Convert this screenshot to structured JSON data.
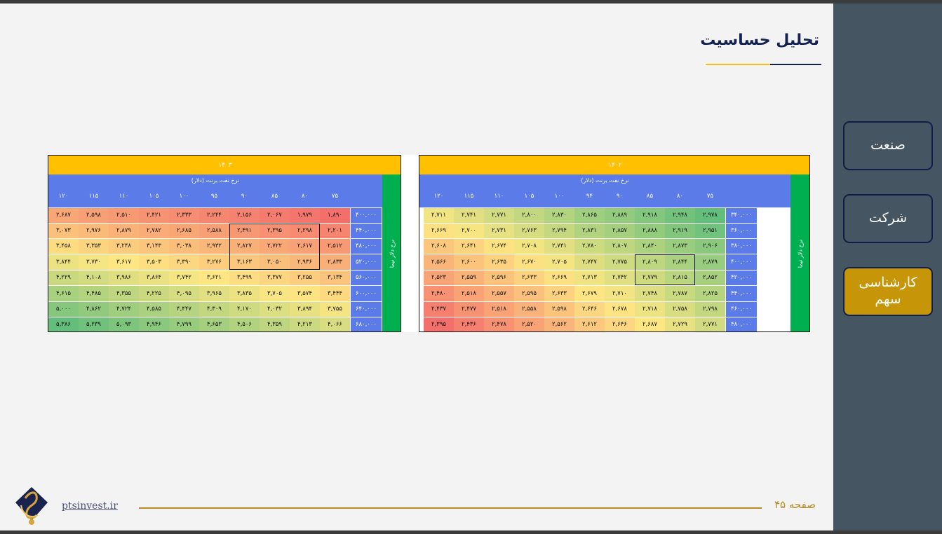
{
  "title": "تحلیل حساسیت",
  "nav": [
    "صنعت",
    "شرکت",
    "کارشناسی سهم"
  ],
  "footer": {
    "page": "صفحه ۴۵",
    "site": "ptsinvest.ir"
  },
  "colors": {
    "accent": "#ffc000",
    "header": "#5b7be8",
    "band": "#00b050",
    "active_nav": "#c79508"
  },
  "left_table": {
    "year": "۱۴۰۳",
    "header_title": "نرخ نفت برنت (دلار)",
    "side_label": "نرخ دلار نیما",
    "columns": [
      "۷۵",
      "۸۰",
      "۸۵",
      "۹۰",
      "۹۵",
      "۱۰۰",
      "۱۰۵",
      "۱۱۰",
      "۱۱۵",
      "۱۲۰"
    ],
    "row_headers": [
      "۴۰۰,۰۰۰",
      "۴۴۰,۰۰۰",
      "۴۸۰,۰۰۰",
      "۵۲۰,۰۰۰",
      "۵۶۰,۰۰۰",
      "۶۰۰,۰۰۰",
      "۶۴۰,۰۰۰",
      "۶۸۰,۰۰۰"
    ],
    "values": [
      [
        1890,
        1979,
        2067,
        2156,
        2244,
        2333,
        2421,
        2510,
        2598,
        2687
      ],
      [
        2201,
        2298,
        2395,
        2491,
        2588,
        2685,
        2782,
        2879,
        2976,
        3073
      ],
      [
        2512,
        2617,
        2722,
        2827,
        2932,
        3038,
        3143,
        3248,
        3353,
        3458
      ],
      [
        2833,
        2936,
        3050,
        3163,
        3276,
        3390,
        3503,
        3617,
        3730,
        3844
      ],
      [
        3134,
        3255,
        3377,
        3499,
        3621,
        3742,
        3864,
        3986,
        4108,
        4229
      ],
      [
        3444,
        3574,
        3705,
        3835,
        3965,
        4095,
        4225,
        4355,
        4485,
        4615
      ],
      [
        3755,
        3894,
        4032,
        4170,
        4309,
        4447,
        4585,
        4724,
        4862,
        5000
      ],
      [
        4066,
        4213,
        4359,
        4506,
        4653,
        4799,
        4946,
        5093,
        5239,
        5386
      ]
    ],
    "display": [
      [
        "۱,۸۹۰",
        "۱,۹۷۹",
        "۲,۰۶۷",
        "۲,۱۵۶",
        "۲,۲۴۴",
        "۲,۳۳۳",
        "۲,۴۲۱",
        "۲,۵۱۰",
        "۲,۵۹۸",
        "۲,۶۸۷"
      ],
      [
        "۲,۲۰۱",
        "۲,۲۹۸",
        "۲,۳۹۵",
        "۲,۴۹۱",
        "۲,۵۸۸",
        "۲,۶۸۵",
        "۲,۷۸۲",
        "۲,۸۷۹",
        "۲,۹۷۶",
        "۳,۰۷۳"
      ],
      [
        "۲,۵۱۲",
        "۲,۶۱۷",
        "۲,۷۲۲",
        "۲,۸۲۷",
        "۲,۹۳۲",
        "۳,۰۳۸",
        "۳,۱۴۳",
        "۳,۲۴۸",
        "۳,۳۵۳",
        "۳,۴۵۸"
      ],
      [
        "۲,۸۳۳",
        "۲,۹۳۶",
        "۳,۰۵۰",
        "۳,۱۶۳",
        "۳,۲۷۶",
        "۳,۳۹۰",
        "۳,۵۰۳",
        "۳,۶۱۷",
        "۳,۷۳۰",
        "۳,۸۴۴"
      ],
      [
        "۳,۱۳۴",
        "۳,۲۵۵",
        "۳,۳۷۷",
        "۳,۴۹۹",
        "۳,۶۲۱",
        "۳,۷۴۲",
        "۳,۸۶۴",
        "۳,۹۸۶",
        "۴,۱۰۸",
        "۴,۲۲۹"
      ],
      [
        "۳,۴۴۴",
        "۳,۵۷۴",
        "۳,۷۰۵",
        "۳,۸۳۵",
        "۳,۹۶۵",
        "۴,۰۹۵",
        "۴,۲۲۵",
        "۴,۳۵۵",
        "۴,۴۸۵",
        "۴,۶۱۵"
      ],
      [
        "۳,۷۵۵",
        "۳,۸۹۴",
        "۴,۰۳۲",
        "۴,۱۷۰",
        "۴,۳۰۹",
        "۴,۴۴۷",
        "۴,۵۸۵",
        "۴,۷۲۴",
        "۴,۸۶۲",
        "۵,۰۰۰"
      ],
      [
        "۴,۰۶۶",
        "۴,۲۱۳",
        "۴,۳۵۹",
        "۴,۵۰۶",
        "۴,۶۵۳",
        "۴,۷۹۹",
        "۴,۹۴۶",
        "۵,۰۹۳",
        "۵,۲۳۹",
        "۵,۳۸۶"
      ]
    ]
  },
  "right_table": {
    "year": "۱۴۰۲",
    "header_title": "نرخ نفت برنت (دلار)",
    "side_label": "نرخ دلار نیما",
    "columns": [
      "۷۵",
      "۸۰",
      "۸۵",
      "۹۰",
      "۹۴",
      "۱۰۰",
      "۱۰۵",
      "۱۱۰",
      "۱۱۵",
      "۱۲۰"
    ],
    "row_headers": [
      "۳۴۰,۰۰۰",
      "۳۶۰,۰۰۰",
      "۳۸۰,۰۰۰",
      "۴۰۰,۰۰۰",
      "۴۲۰,۰۰۰",
      "۴۴۰,۰۰۰",
      "۴۶۰,۰۰۰",
      "۴۸۰,۰۰۰"
    ],
    "values": [
      [
        2978,
        2948,
        2918,
        2889,
        2865,
        2830,
        2800,
        2771,
        2741,
        2711
      ],
      [
        2951,
        2919,
        2888,
        2857,
        2831,
        2794,
        2763,
        2731,
        2700,
        2669
      ],
      [
        2906,
        2873,
        2840,
        2807,
        2780,
        2741,
        2708,
        2674,
        2641,
        2608
      ],
      [
        2879,
        2844,
        2809,
        2775,
        2747,
        2705,
        2670,
        2635,
        2600,
        2566
      ],
      [
        2852,
        2815,
        2779,
        2742,
        2713,
        2669,
        2633,
        2596,
        2559,
        2523
      ],
      [
        2825,
        2787,
        2748,
        2710,
        2679,
        2633,
        2595,
        2557,
        2518,
        2480
      ],
      [
        2798,
        2758,
        2718,
        2678,
        2646,
        2598,
        2558,
        2518,
        2477,
        2437
      ],
      [
        2771,
        2729,
        2687,
        2646,
        2612,
        2562,
        2520,
        2478,
        2436,
        2395
      ]
    ],
    "display": [
      [
        "۲,۹۷۸",
        "۲,۹۴۸",
        "۲,۹۱۸",
        "۲,۸۸۹",
        "۲,۸۶۵",
        "۲,۸۳۰",
        "۲,۸۰۰",
        "۲,۷۷۱",
        "۲,۷۴۱",
        "۲,۷۱۱"
      ],
      [
        "۲,۹۵۱",
        "۲,۹۱۹",
        "۲,۸۸۸",
        "۲,۸۵۷",
        "۲,۸۳۱",
        "۲,۷۹۴",
        "۲,۷۶۳",
        "۲,۷۳۱",
        "۲,۷۰۰",
        "۲,۶۶۹"
      ],
      [
        "۲,۹۰۶",
        "۲,۸۷۳",
        "۲,۸۴۰",
        "۲,۸۰۷",
        "۲,۷۸۰",
        "۲,۷۴۱",
        "۲,۷۰۸",
        "۲,۶۷۴",
        "۲,۶۴۱",
        "۲,۶۰۸"
      ],
      [
        "۲,۸۷۹",
        "۲,۸۴۴",
        "۲,۸۰۹",
        "۲,۷۷۵",
        "۲,۷۴۷",
        "۲,۷۰۵",
        "۲,۶۷۰",
        "۲,۶۳۵",
        "۲,۶۰۰",
        "۲,۵۶۶"
      ],
      [
        "۲,۸۵۲",
        "۲,۸۱۵",
        "۲,۷۷۹",
        "۲,۷۴۲",
        "۲,۷۱۳",
        "۲,۶۶۹",
        "۲,۶۳۳",
        "۲,۵۹۶",
        "۲,۵۵۹",
        "۲,۵۲۳"
      ],
      [
        "۲,۸۲۵",
        "۲,۷۸۷",
        "۲,۷۴۸",
        "۲,۷۱۰",
        "۲,۶۷۹",
        "۲,۶۳۳",
        "۲,۵۹۵",
        "۲,۵۵۷",
        "۲,۵۱۸",
        "۲,۴۸۰"
      ],
      [
        "۲,۷۹۸",
        "۲,۷۵۸",
        "۲,۷۱۸",
        "۲,۶۷۸",
        "۲,۶۴۶",
        "۲,۵۹۸",
        "۲,۵۵۸",
        "۲,۵۱۸",
        "۲,۴۷۷",
        "۲,۴۳۷"
      ],
      [
        "۲,۷۷۱",
        "۲,۷۲۹",
        "۲,۶۸۷",
        "۲,۶۴۶",
        "۲,۶۱۲",
        "۲,۵۶۲",
        "۲,۵۲۰",
        "۲,۴۷۸",
        "۲,۴۳۶",
        "۲,۳۹۵"
      ]
    ]
  }
}
